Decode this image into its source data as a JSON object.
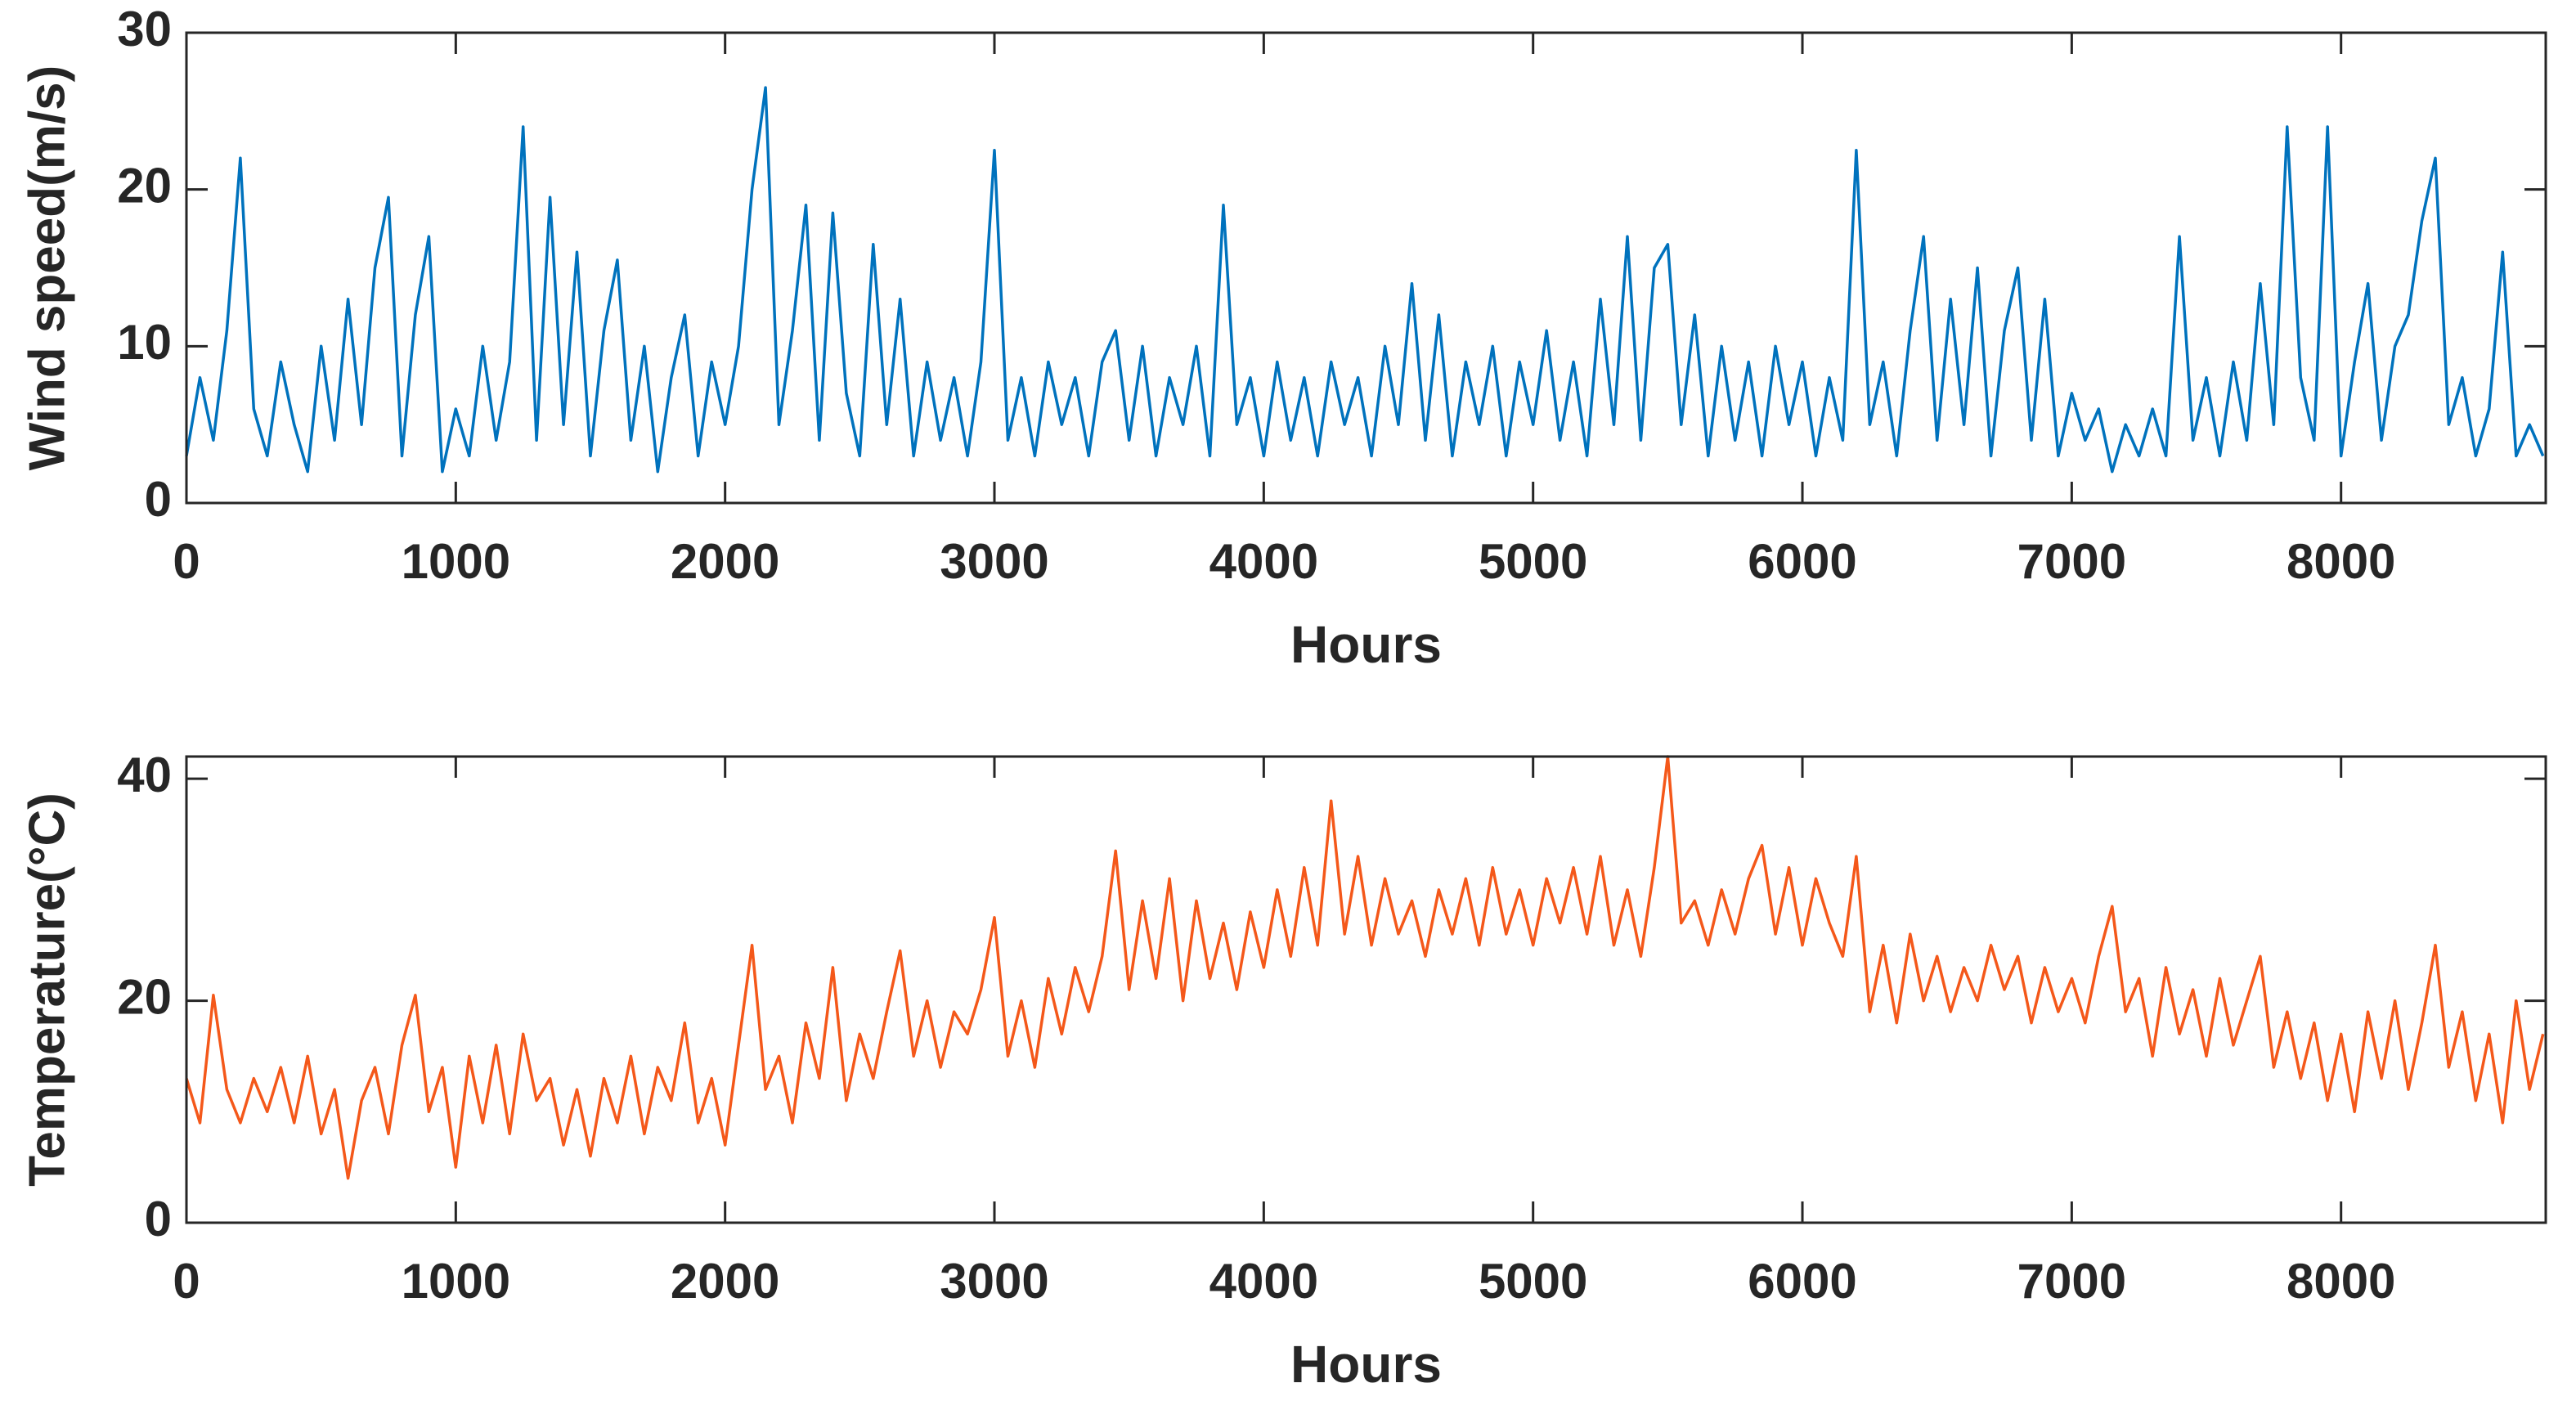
{
  "chart_data": [
    {
      "type": "line",
      "xlabel": "Hours",
      "ylabel": "Wind speed(m/s)",
      "xlim": [
        0,
        8760
      ],
      "xticks": [
        0,
        1000,
        2000,
        3000,
        4000,
        5000,
        6000,
        7000,
        8000
      ],
      "ylim": [
        0,
        30
      ],
      "yticks": [
        0,
        10,
        20,
        30
      ],
      "grid": false,
      "x": [
        0,
        50,
        100,
        150,
        200,
        250,
        300,
        350,
        400,
        450,
        500,
        550,
        600,
        650,
        700,
        750,
        800,
        850,
        900,
        950,
        1000,
        1050,
        1100,
        1150,
        1200,
        1250,
        1300,
        1350,
        1400,
        1450,
        1500,
        1550,
        1600,
        1650,
        1700,
        1750,
        1800,
        1850,
        1900,
        1950,
        2000,
        2050,
        2100,
        2150,
        2200,
        2250,
        2300,
        2350,
        2400,
        2450,
        2500,
        2550,
        2600,
        2650,
        2700,
        2750,
        2800,
        2850,
        2900,
        2950,
        3000,
        3050,
        3100,
        3150,
        3200,
        3250,
        3300,
        3350,
        3400,
        3450,
        3500,
        3550,
        3600,
        3650,
        3700,
        3750,
        3800,
        3850,
        3900,
        3950,
        4000,
        4050,
        4100,
        4150,
        4200,
        4250,
        4300,
        4350,
        4400,
        4450,
        4500,
        4550,
        4600,
        4650,
        4700,
        4750,
        4800,
        4850,
        4900,
        4950,
        5000,
        5050,
        5100,
        5150,
        5200,
        5250,
        5300,
        5350,
        5400,
        5450,
        5500,
        5550,
        5600,
        5650,
        5700,
        5750,
        5800,
        5850,
        5900,
        5950,
        6000,
        6050,
        6100,
        6150,
        6200,
        6250,
        6300,
        6350,
        6400,
        6450,
        6500,
        6550,
        6600,
        6650,
        6700,
        6750,
        6800,
        6850,
        6900,
        6950,
        7000,
        7050,
        7100,
        7150,
        7200,
        7250,
        7300,
        7350,
        7400,
        7450,
        7500,
        7550,
        7600,
        7650,
        7700,
        7750,
        7800,
        7850,
        7900,
        7950,
        8000,
        8050,
        8100,
        8150,
        8200,
        8250,
        8300,
        8350,
        8400,
        8450,
        8500,
        8550,
        8600,
        8650,
        8700,
        8750
      ],
      "series": [
        {
          "color": "#0072bd",
          "values": [
            3,
            8,
            4,
            11,
            22,
            6,
            3,
            9,
            5,
            2,
            10,
            4,
            13,
            5,
            15,
            19.5,
            3,
            12,
            17,
            2,
            6,
            3,
            10,
            4,
            9,
            24,
            4,
            19.5,
            5,
            16,
            3,
            11,
            15.5,
            4,
            10,
            2,
            8,
            12,
            3,
            9,
            5,
            10,
            20,
            26.5,
            5,
            11,
            19,
            4,
            18.5,
            7,
            3,
            16.5,
            5,
            13,
            3,
            9,
            4,
            8,
            3,
            9,
            22.5,
            4,
            8,
            3,
            9,
            5,
            8,
            3,
            9,
            11,
            4,
            10,
            3,
            8,
            5,
            10,
            3,
            19,
            5,
            8,
            3,
            9,
            4,
            8,
            3,
            9,
            5,
            8,
            3,
            10,
            5,
            14,
            4,
            12,
            3,
            9,
            5,
            10,
            3,
            9,
            5,
            11,
            4,
            9,
            3,
            13,
            5,
            17,
            4,
            15,
            16.5,
            5,
            12,
            3,
            10,
            4,
            9,
            3,
            10,
            5,
            9,
            3,
            8,
            4,
            22.5,
            5,
            9,
            3,
            11,
            17,
            4,
            13,
            5,
            15,
            3,
            11,
            15,
            4,
            13,
            3,
            7,
            4,
            6,
            2,
            5,
            3,
            6,
            3,
            17,
            4,
            8,
            3,
            9,
            4,
            14,
            5,
            24,
            8,
            4,
            24,
            3,
            9,
            14,
            4,
            10,
            12,
            18,
            22,
            5,
            8,
            3,
            6,
            16,
            3,
            5,
            3
          ]
        }
      ]
    },
    {
      "type": "line",
      "xlabel": "Hours",
      "ylabel": "Temperature(°C)",
      "xlim": [
        0,
        8760
      ],
      "xticks": [
        0,
        1000,
        2000,
        3000,
        4000,
        5000,
        6000,
        7000,
        8000
      ],
      "ylim": [
        0,
        42
      ],
      "yticks": [
        0,
        20,
        40
      ],
      "grid": false,
      "x": [
        0,
        50,
        100,
        150,
        200,
        250,
        300,
        350,
        400,
        450,
        500,
        550,
        600,
        650,
        700,
        750,
        800,
        850,
        900,
        950,
        1000,
        1050,
        1100,
        1150,
        1200,
        1250,
        1300,
        1350,
        1400,
        1450,
        1500,
        1550,
        1600,
        1650,
        1700,
        1750,
        1800,
        1850,
        1900,
        1950,
        2000,
        2050,
        2100,
        2150,
        2200,
        2250,
        2300,
        2350,
        2400,
        2450,
        2500,
        2550,
        2600,
        2650,
        2700,
        2750,
        2800,
        2850,
        2900,
        2950,
        3000,
        3050,
        3100,
        3150,
        3200,
        3250,
        3300,
        3350,
        3400,
        3450,
        3500,
        3550,
        3600,
        3650,
        3700,
        3750,
        3800,
        3850,
        3900,
        3950,
        4000,
        4050,
        4100,
        4150,
        4200,
        4250,
        4300,
        4350,
        4400,
        4450,
        4500,
        4550,
        4600,
        4650,
        4700,
        4750,
        4800,
        4850,
        4900,
        4950,
        5000,
        5050,
        5100,
        5150,
        5200,
        5250,
        5300,
        5350,
        5400,
        5450,
        5500,
        5550,
        5600,
        5650,
        5700,
        5750,
        5800,
        5850,
        5900,
        5950,
        6000,
        6050,
        6100,
        6150,
        6200,
        6250,
        6300,
        6350,
        6400,
        6450,
        6500,
        6550,
        6600,
        6650,
        6700,
        6750,
        6800,
        6850,
        6900,
        6950,
        7000,
        7050,
        7100,
        7150,
        7200,
        7250,
        7300,
        7350,
        7400,
        7450,
        7500,
        7550,
        7600,
        7650,
        7700,
        7750,
        7800,
        7850,
        7900,
        7950,
        8000,
        8050,
        8100,
        8150,
        8200,
        8250,
        8300,
        8350,
        8400,
        8450,
        8500,
        8550,
        8600,
        8650,
        8700,
        8750
      ],
      "series": [
        {
          "color": "#f4581a",
          "values": [
            13,
            9,
            20.5,
            12,
            9,
            13,
            10,
            14,
            9,
            15,
            8,
            12,
            4,
            11,
            14,
            8,
            16,
            20.5,
            10,
            14,
            5,
            15,
            9,
            16,
            8,
            17,
            11,
            13,
            7,
            12,
            6,
            13,
            9,
            15,
            8,
            14,
            11,
            18,
            9,
            13,
            7,
            16,
            25,
            12,
            15,
            9,
            18,
            13,
            23,
            11,
            17,
            13,
            19,
            24.5,
            15,
            20,
            14,
            19,
            17,
            21,
            27.5,
            15,
            20,
            14,
            22,
            17,
            23,
            19,
            24,
            33.5,
            21,
            29,
            22,
            31,
            20,
            29,
            22,
            27,
            21,
            28,
            23,
            30,
            24,
            32,
            25,
            38,
            26,
            33,
            25,
            31,
            26,
            29,
            24,
            30,
            26,
            31,
            25,
            32,
            26,
            30,
            25,
            31,
            27,
            32,
            26,
            33,
            25,
            30,
            24,
            32,
            42,
            27,
            29,
            25,
            30,
            26,
            31,
            34,
            26,
            32,
            25,
            31,
            27,
            24,
            33,
            19,
            25,
            18,
            26,
            20,
            24,
            19,
            23,
            20,
            25,
            21,
            24,
            18,
            23,
            19,
            22,
            18,
            24,
            28.5,
            19,
            22,
            15,
            23,
            17,
            21,
            15,
            22,
            16,
            20,
            24,
            14,
            19,
            13,
            18,
            11,
            17,
            10,
            19,
            13,
            20,
            12,
            18,
            25,
            14,
            19,
            11,
            17,
            9,
            20,
            12,
            17
          ]
        }
      ]
    }
  ]
}
